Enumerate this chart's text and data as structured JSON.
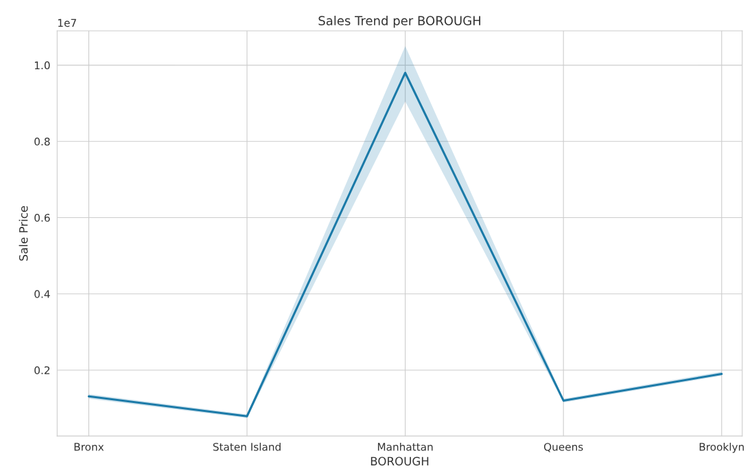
{
  "chart_data": {
    "type": "line",
    "title": "Sales Trend per BOROUGH",
    "xlabel": "BOROUGH",
    "ylabel": "Sale Price",
    "categories": [
      "Bronx",
      "Staten Island",
      "Manhattan",
      "Queens",
      "Brooklyn"
    ],
    "series": [
      {
        "color": "#1b7aa8",
        "values": [
          0.131,
          0.079,
          0.98,
          0.12,
          0.19
        ],
        "lower": [
          0.125,
          0.074,
          0.905,
          0.115,
          0.185
        ],
        "upper": [
          0.137,
          0.084,
          1.05,
          0.125,
          0.196
        ]
      }
    ],
    "ylim": [
      0.027,
      1.09
    ],
    "yticks": [
      0.2,
      0.4,
      0.6,
      0.8,
      {
        "value": 1.0,
        "label": "1.0"
      }
    ],
    "annotations": [
      "1e7"
    ],
    "grid": true
  }
}
